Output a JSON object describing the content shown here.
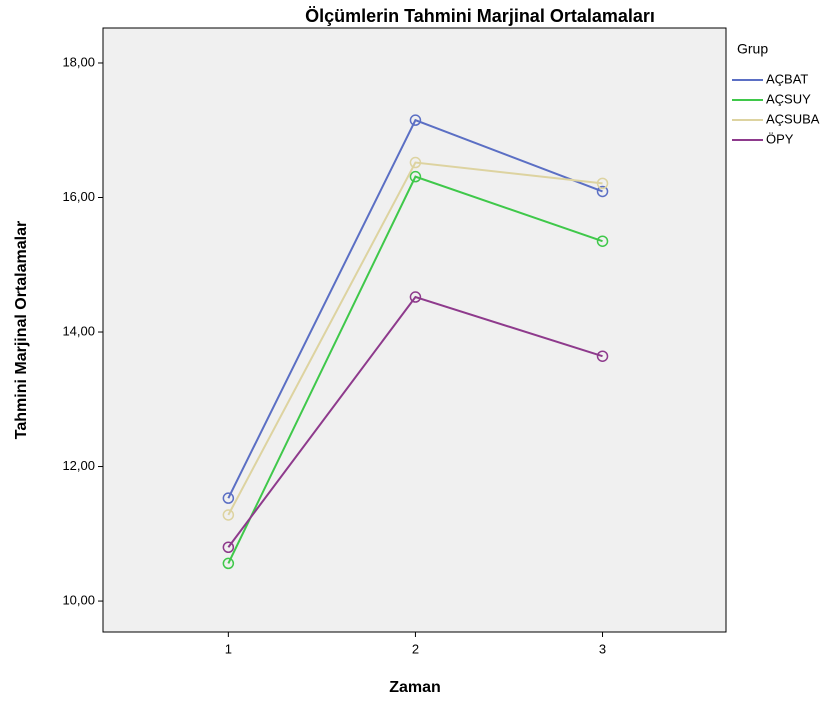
{
  "chart_data": {
    "type": "line",
    "title": "Ölçümlerin Tahmini Marjinal Ortalamaları",
    "x_label": "Zaman",
    "y_label": "Tahmini Marjinal Ortalamalar",
    "legend_title": "Grup",
    "legend": "right",
    "x": [
      1,
      2,
      3
    ],
    "xlim": [
      0.33,
      3.66
    ],
    "xticks": [
      1,
      2,
      3
    ],
    "ylim": [
      9.54,
      18.52
    ],
    "yticks": [
      {
        "value": 10,
        "label": "10,00"
      },
      {
        "value": 12,
        "label": "12,00"
      },
      {
        "value": 14,
        "label": "14,00"
      },
      {
        "value": 16,
        "label": "16,00"
      },
      {
        "value": 18,
        "label": "18,00"
      }
    ],
    "series": [
      {
        "name": "AÇBAT",
        "color": "#5b6fc4",
        "values": [
          11.53,
          17.15,
          16.09
        ]
      },
      {
        "name": "AÇSUY",
        "color": "#3fc84a",
        "values": [
          10.56,
          16.31,
          15.35
        ]
      },
      {
        "name": "AÇSUBA",
        "color": "#ddd3a0",
        "values": [
          11.28,
          16.52,
          16.21
        ]
      },
      {
        "name": "ÖPY",
        "color": "#8e3a8c",
        "values": [
          10.8,
          14.52,
          13.64
        ]
      }
    ]
  }
}
